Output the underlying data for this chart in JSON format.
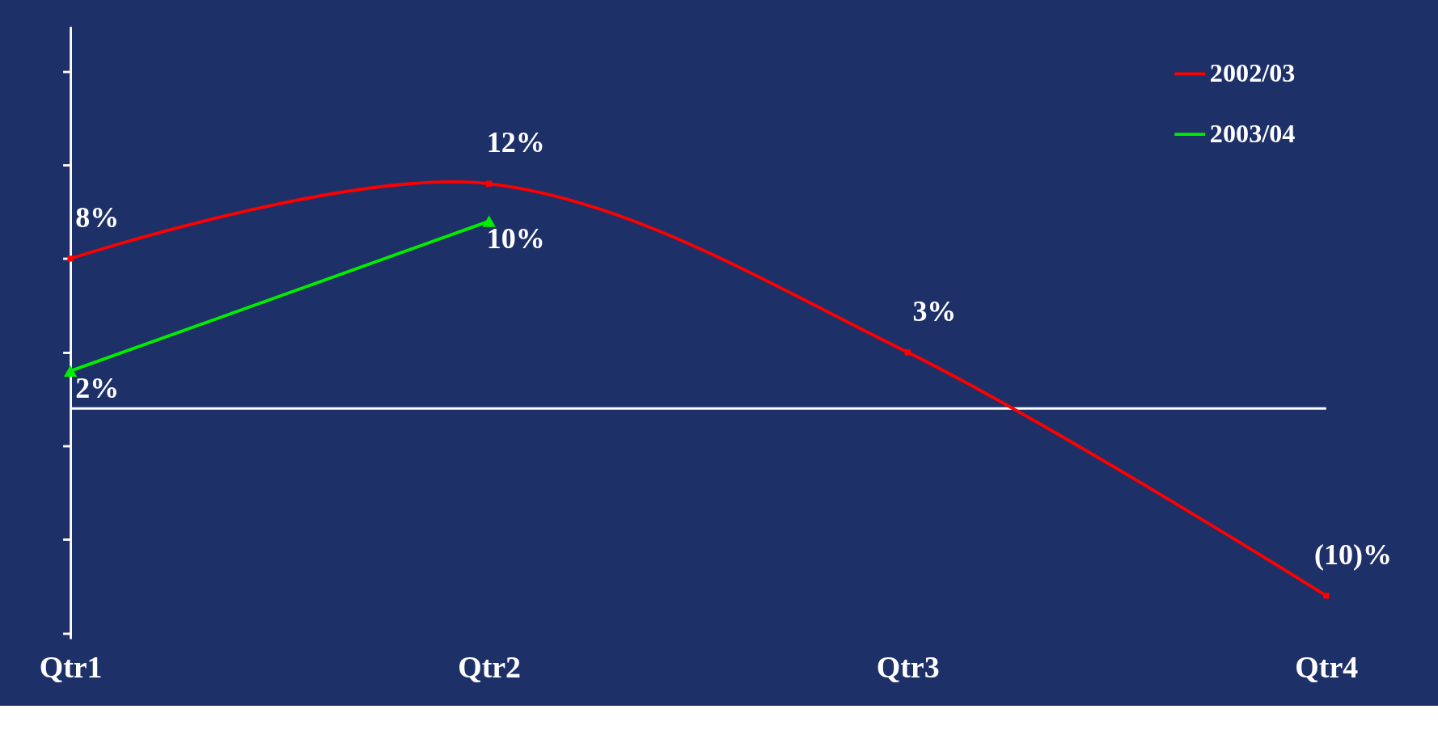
{
  "chart_data": {
    "type": "line",
    "categories": [
      "Qtr1",
      "Qtr2",
      "Qtr3",
      "Qtr4"
    ],
    "series": [
      {
        "name": "2002/03",
        "color": "#ff0000",
        "marker": "square",
        "values": [
          8,
          12,
          3,
          -10
        ],
        "value_labels": [
          "8%",
          "12%",
          "3%",
          "(10)%"
        ]
      },
      {
        "name": "2003/04",
        "color": "#00ee00",
        "marker": "triangle",
        "values": [
          2,
          10,
          null,
          null
        ],
        "value_labels": [
          "2%",
          "10%",
          null,
          null
        ]
      }
    ],
    "ylim": [
      -12.3,
      20.4
    ],
    "yticks": [
      {
        "value": 18,
        "label": null
      },
      {
        "value": 13,
        "label": null
      },
      {
        "value": 8,
        "label": null
      },
      {
        "value": 3,
        "label": null
      },
      {
        "value": -2,
        "label": null
      },
      {
        "value": -7,
        "label": null
      },
      {
        "value": -12,
        "label": null
      }
    ],
    "ref_lines": [
      {
        "axis": "y",
        "value": 0,
        "label": null,
        "color": "#ffffff"
      }
    ],
    "tick_labels": "x",
    "legend": "top right",
    "grid": false,
    "line_style": "solid"
  }
}
